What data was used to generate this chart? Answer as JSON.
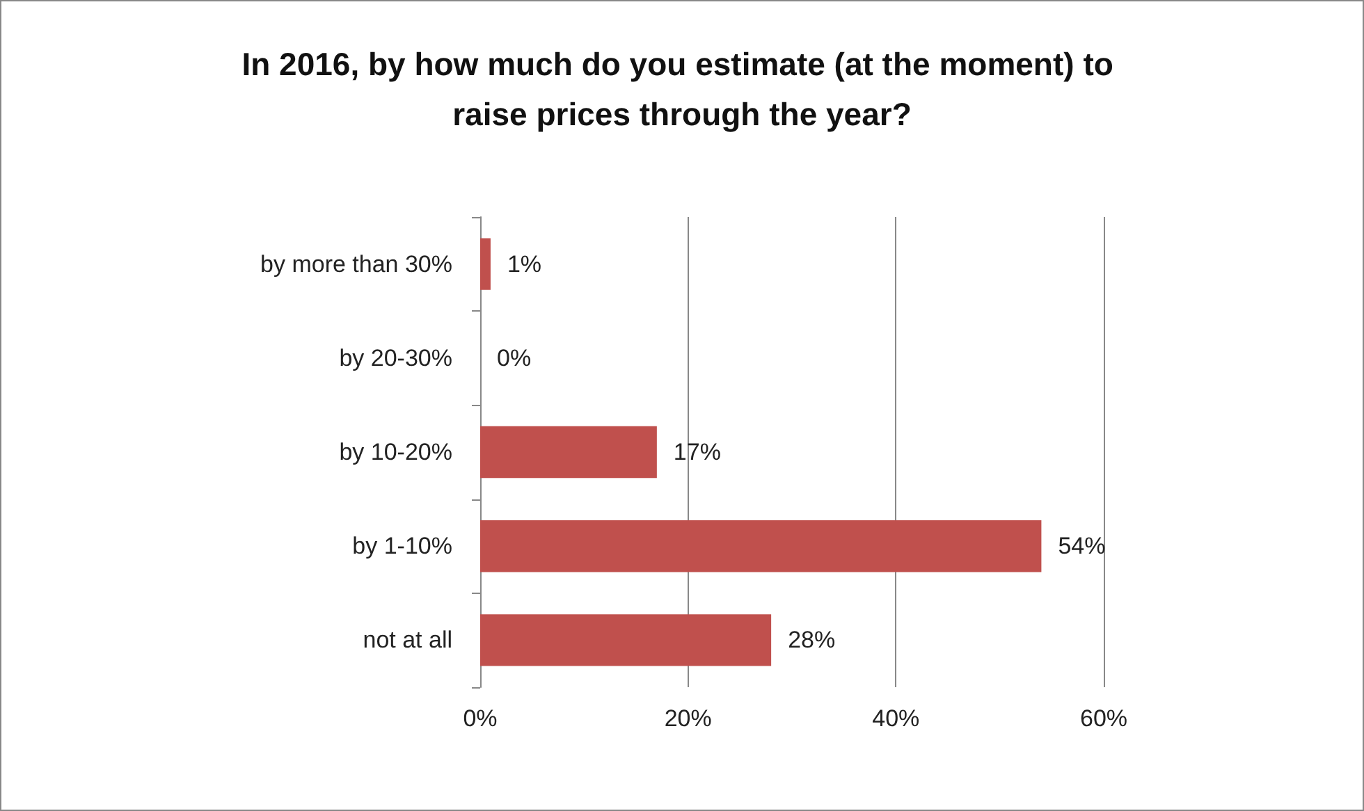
{
  "chart_data": {
    "type": "bar",
    "orientation": "horizontal",
    "title": "In 2016, by how much do you estimate (at the moment) to raise prices through the year?",
    "categories": [
      "by more than 30%",
      "by 20-30%",
      "by 10-20%",
      "by 1-10%",
      "not at all"
    ],
    "values": [
      1,
      0,
      17,
      54,
      28
    ],
    "value_labels": [
      "1%",
      "0%",
      "17%",
      "54%",
      "28%"
    ],
    "color": "#c0504d",
    "xlim": [
      0,
      60
    ],
    "xticks": [
      {
        "value": 0,
        "label": "0%"
      },
      {
        "value": 20,
        "label": "20%"
      },
      {
        "value": 40,
        "label": "40%"
      },
      {
        "value": 60,
        "label": "60%"
      }
    ],
    "grid": "x"
  }
}
